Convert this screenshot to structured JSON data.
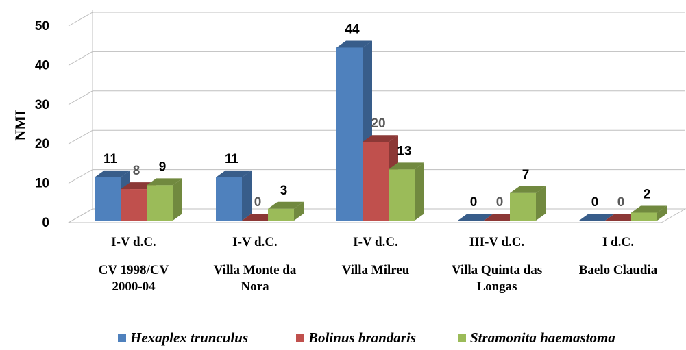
{
  "chart_data": {
    "type": "bar3d",
    "y_label": "NMI",
    "categories": [
      "CV 1998/CV 2000-04",
      "Villa Monte da Nora",
      "Villa Milreu",
      "Villa Quinta das Longas",
      "Baelo Claudia"
    ],
    "periods": [
      "I-V d.C.",
      "I-V d.C.",
      "I-V d.C.",
      "III-V d.C.",
      "I d.C."
    ],
    "series": [
      {
        "name": "Hexaplex trunculus",
        "color": "#4f81bd",
        "side_color": "#385d8a",
        "label_color": "#000000",
        "values": [
          11,
          11,
          44,
          0,
          0
        ]
      },
      {
        "name": "Bolinus brandaris",
        "color": "#c0504d",
        "side_color": "#8c3836",
        "label_color": "#595959",
        "values": [
          8,
          0,
          20,
          0,
          0
        ]
      },
      {
        "name": "Stramonita haemastoma",
        "color": "#9bbb59",
        "side_color": "#71893f",
        "label_color": "#000000",
        "values": [
          9,
          3,
          13,
          7,
          2
        ]
      }
    ],
    "ylim": [
      0,
      50
    ],
    "yticks": [
      0,
      10,
      20,
      30,
      40,
      50
    ],
    "grid": true,
    "legend": "bottom"
  }
}
